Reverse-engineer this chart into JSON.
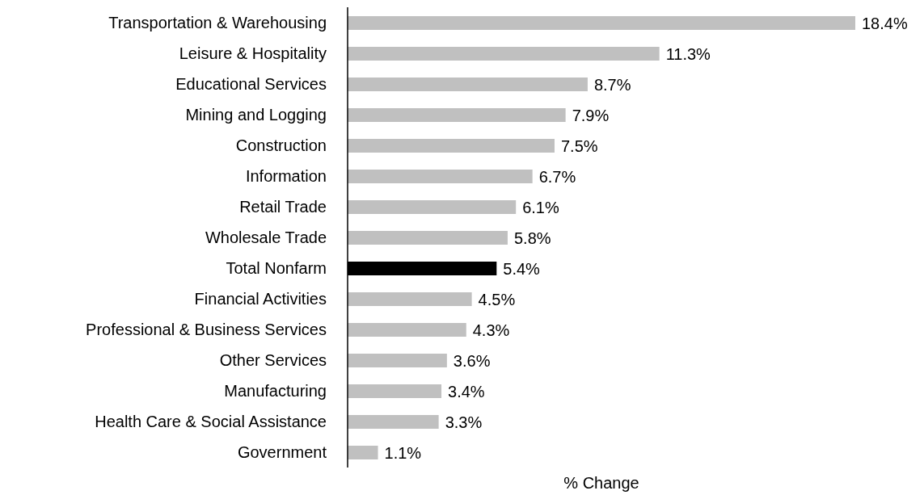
{
  "chart_data": {
    "type": "bar",
    "orientation": "horizontal",
    "xlabel": "% Change",
    "categories": [
      "Transportation & Warehousing",
      "Leisure & Hospitality",
      "Educational Services",
      "Mining and Logging",
      "Construction",
      "Information",
      "Retail Trade",
      "Wholesale Trade",
      "Total Nonfarm",
      "Financial Activities",
      "Professional & Business Services",
      "Other Services",
      "Manufacturing",
      "Health Care & Social Assistance",
      "Government"
    ],
    "values": [
      18.4,
      11.3,
      8.7,
      7.9,
      7.5,
      6.7,
      6.1,
      5.8,
      5.4,
      4.5,
      4.3,
      3.6,
      3.4,
      3.3,
      1.1
    ],
    "value_labels": [
      "18.4%",
      "11.3%",
      "8.7%",
      "7.9%",
      "7.5%",
      "6.7%",
      "6.1%",
      "5.8%",
      "5.4%",
      "4.5%",
      "4.3%",
      "3.6%",
      "3.4%",
      "3.3%",
      "1.1%"
    ],
    "colors": [
      "#c0c0c0",
      "#c0c0c0",
      "#c0c0c0",
      "#c0c0c0",
      "#c0c0c0",
      "#c0c0c0",
      "#c0c0c0",
      "#c0c0c0",
      "#000000",
      "#c0c0c0",
      "#c0c0c0",
      "#c0c0c0",
      "#c0c0c0",
      "#c0c0c0",
      "#c0c0c0"
    ],
    "tick_labels": "y"
  }
}
